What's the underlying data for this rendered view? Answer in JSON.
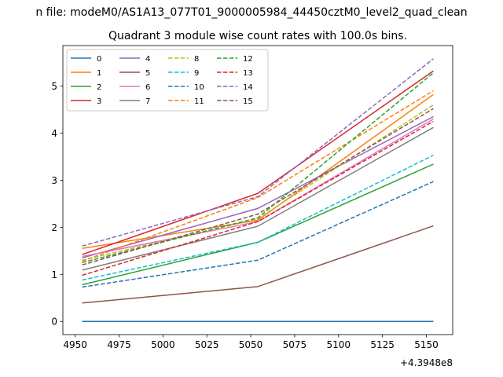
{
  "chart_data": {
    "type": "line",
    "suptitle": "n file: modeM0/AS1A13_077T01_9000005984_44450cztM0_level2_quad_clean",
    "title": "Quadrant 3 module wise count rates with 100.0s bins.",
    "xlabel": "",
    "ylabel": "",
    "x_offset_label": "+4.3948e8",
    "x_offset": 439480000,
    "x": [
      439484954,
      439485054,
      439485154
    ],
    "xlim": [
      439484943,
      439485165
    ],
    "ylim": [
      -0.28,
      5.86
    ],
    "xticks": [
      4950,
      4975,
      5000,
      5025,
      5050,
      5075,
      5100,
      5125,
      5150
    ],
    "yticks": [
      0,
      1,
      2,
      3,
      4,
      5
    ],
    "grid": false,
    "legend_position": "upper-left",
    "legend_columns": 4,
    "series": [
      {
        "name": "0",
        "color": "#1f77b4",
        "dash": false,
        "values": [
          0.0,
          0.0,
          0.0
        ]
      },
      {
        "name": "1",
        "color": "#ff7f0e",
        "dash": false,
        "values": [
          1.55,
          2.15,
          4.82
        ]
      },
      {
        "name": "2",
        "color": "#2ca02c",
        "dash": false,
        "values": [
          0.78,
          1.68,
          3.34
        ]
      },
      {
        "name": "3",
        "color": "#d62728",
        "dash": false,
        "values": [
          1.42,
          2.72,
          5.32
        ]
      },
      {
        "name": "4",
        "color": "#9467bd",
        "dash": false,
        "values": [
          1.35,
          2.4,
          4.35
        ]
      },
      {
        "name": "5",
        "color": "#8c564b",
        "dash": false,
        "values": [
          0.39,
          0.74,
          2.03
        ]
      },
      {
        "name": "6",
        "color": "#e377c2",
        "dash": false,
        "values": [
          1.38,
          2.12,
          4.3
        ]
      },
      {
        "name": "7",
        "color": "#7f7f7f",
        "dash": false,
        "values": [
          1.09,
          2.02,
          4.12
        ]
      },
      {
        "name": "8",
        "color": "#bcbd22",
        "dash": true,
        "values": [
          1.3,
          2.18,
          4.6
        ]
      },
      {
        "name": "9",
        "color": "#17becf",
        "dash": true,
        "values": [
          0.88,
          1.68,
          3.53
        ]
      },
      {
        "name": "10",
        "color": "#1f77b4",
        "dash": true,
        "values": [
          0.73,
          1.3,
          2.97
        ]
      },
      {
        "name": "11",
        "color": "#ff7f0e",
        "dash": true,
        "values": [
          1.28,
          2.63,
          4.9
        ]
      },
      {
        "name": "12",
        "color": "#2ca02c",
        "dash": true,
        "values": [
          1.25,
          2.2,
          5.28
        ]
      },
      {
        "name": "13",
        "color": "#d62728",
        "dash": true,
        "values": [
          0.98,
          2.12,
          4.25
        ]
      },
      {
        "name": "14",
        "color": "#9467bd",
        "dash": true,
        "values": [
          1.6,
          2.65,
          5.58
        ]
      },
      {
        "name": "15",
        "color": "#8c564b",
        "dash": true,
        "values": [
          1.2,
          2.28,
          4.52
        ]
      }
    ]
  }
}
